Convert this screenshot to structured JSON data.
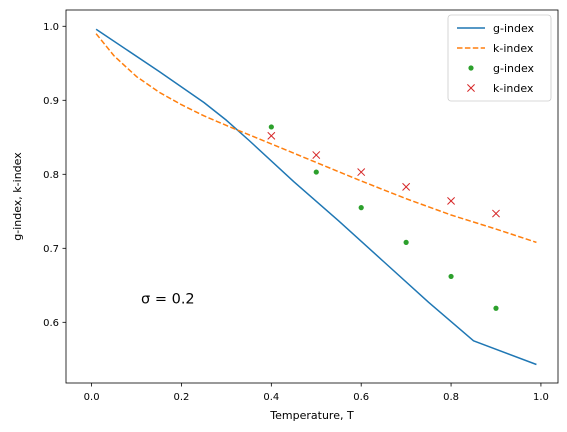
{
  "chart_data": {
    "type": "line",
    "xlabel": "Temperature, T",
    "ylabel": "g-index, k-index",
    "xlim": [
      -0.057,
      1.038
    ],
    "ylim": [
      0.518,
      1.022
    ],
    "xticks": [
      0.0,
      0.2,
      0.4,
      0.6,
      0.8,
      1.0
    ],
    "xtick_labels": [
      "0.0",
      "0.2",
      "0.4",
      "0.6",
      "0.8",
      "1.0"
    ],
    "yticks": [
      0.6,
      0.7,
      0.8,
      0.9,
      1.0
    ],
    "ytick_labels": [
      "0.6",
      "0.7",
      "0.8",
      "0.9",
      "1.0"
    ],
    "grid": false,
    "legend_position": "top-right",
    "annotation": {
      "text": "σ = 0.2",
      "x": 0.11,
      "y": 0.632
    },
    "series": [
      {
        "name": "g-index",
        "kind": "line",
        "style": "solid",
        "color": "#1f77b4",
        "x": [
          0.01,
          0.15,
          0.25,
          0.3,
          0.35,
          0.45,
          0.55,
          0.65,
          0.75,
          0.85,
          0.99
        ],
        "y": [
          0.996,
          0.939,
          0.897,
          0.873,
          0.846,
          0.79,
          0.737,
          0.682,
          0.627,
          0.575,
          0.543
        ]
      },
      {
        "name": "k-index",
        "kind": "line",
        "style": "dashed",
        "color": "#ff7f0e",
        "x": [
          0.01,
          0.05,
          0.1,
          0.15,
          0.2,
          0.25,
          0.3,
          0.4,
          0.5,
          0.6,
          0.7,
          0.8,
          0.9,
          0.99
        ],
        "y": [
          0.99,
          0.96,
          0.932,
          0.911,
          0.894,
          0.879,
          0.866,
          0.841,
          0.816,
          0.791,
          0.767,
          0.745,
          0.726,
          0.708
        ]
      },
      {
        "name": "g-index",
        "kind": "scatter",
        "marker": "dot",
        "color": "#2ca02c",
        "x": [
          0.4,
          0.5,
          0.6,
          0.7,
          0.8,
          0.9
        ],
        "y": [
          0.864,
          0.803,
          0.755,
          0.708,
          0.662,
          0.619
        ]
      },
      {
        "name": "k-index",
        "kind": "scatter",
        "marker": "x",
        "color": "#d62728",
        "x": [
          0.4,
          0.5,
          0.6,
          0.7,
          0.8,
          0.9
        ],
        "y": [
          0.852,
          0.826,
          0.803,
          0.783,
          0.764,
          0.747
        ]
      }
    ]
  }
}
